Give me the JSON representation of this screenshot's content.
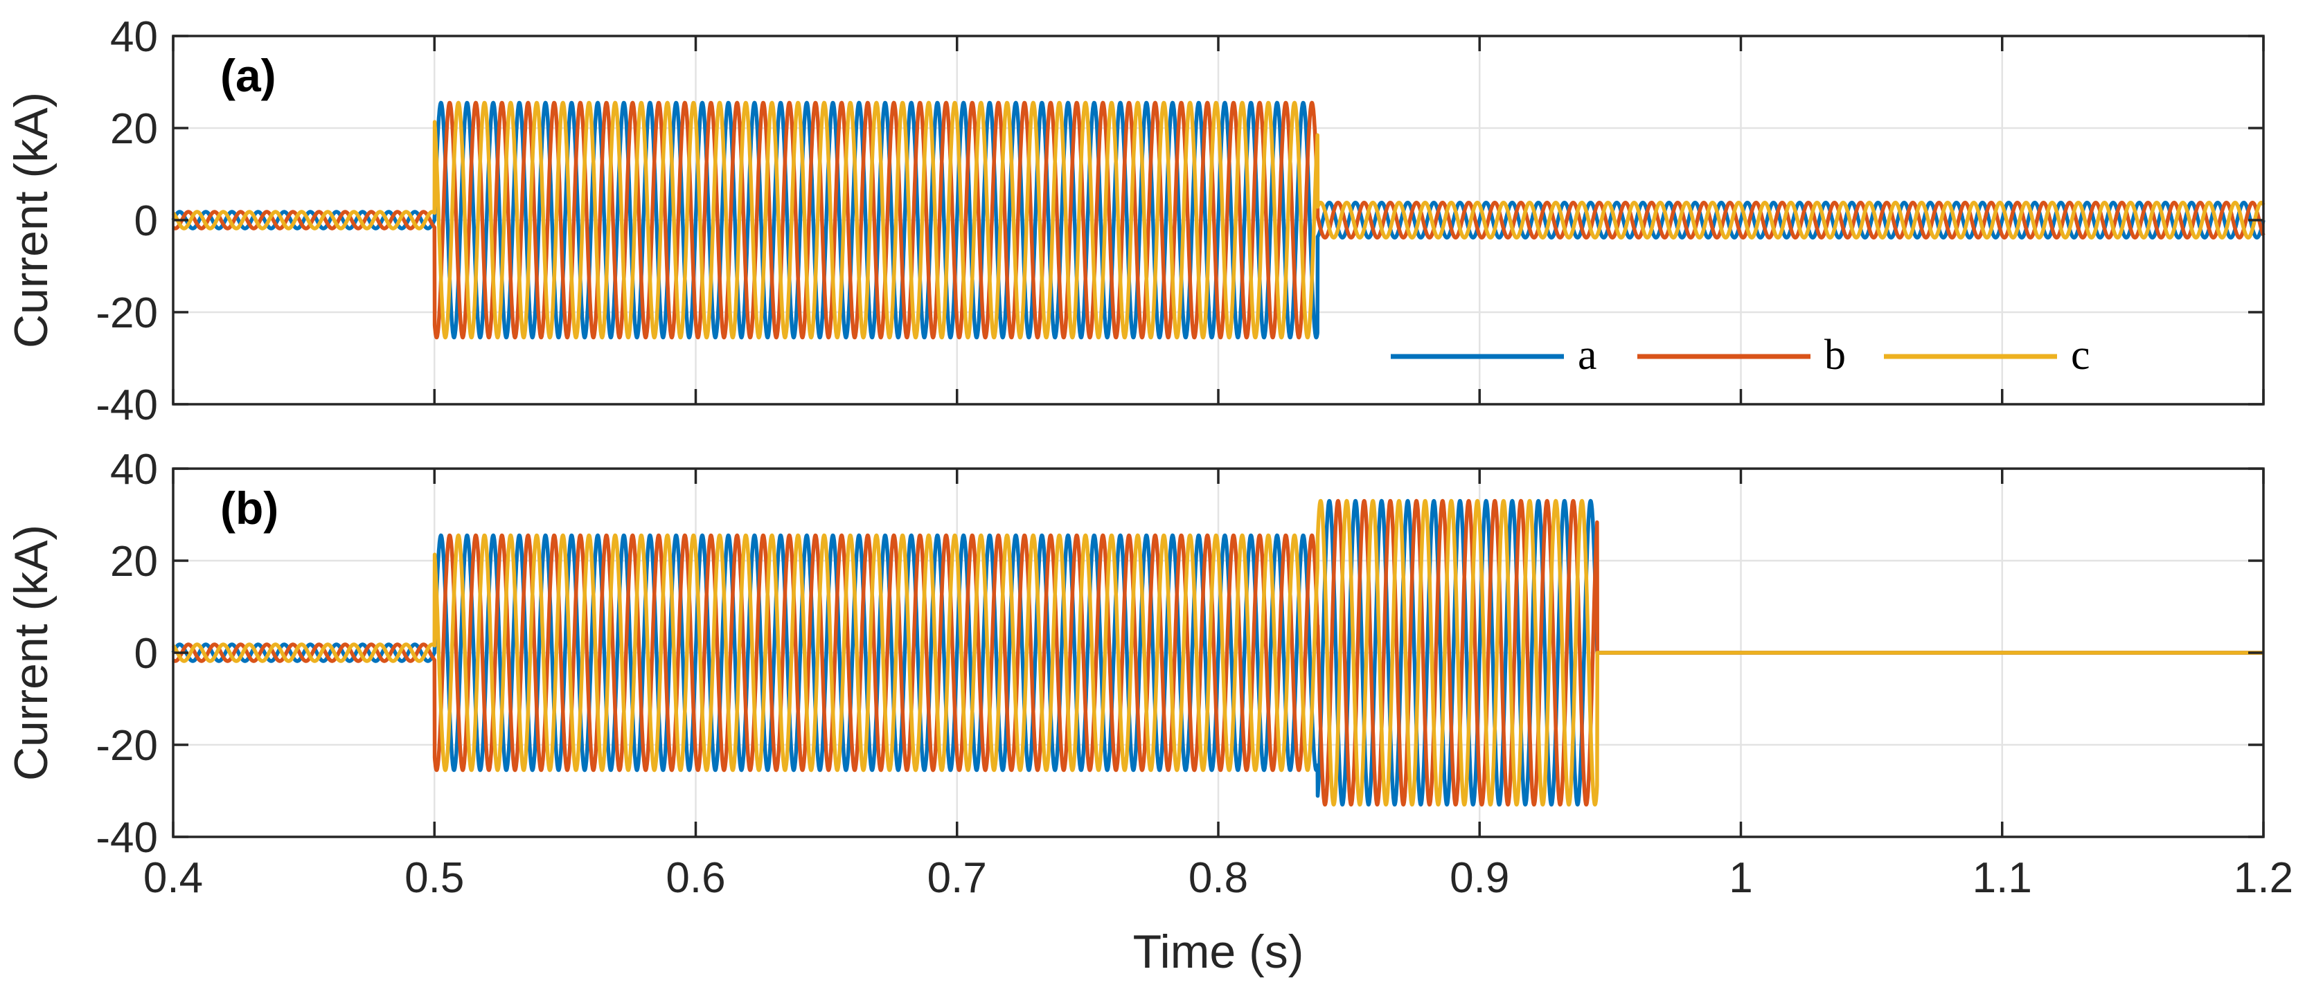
{
  "chart_data": [
    {
      "type": "line",
      "panel_label": "(a)",
      "xlabel": "",
      "ylabel": "Current (kA)",
      "xlim": [
        0.4,
        1.2
      ],
      "ylim": [
        -40,
        40
      ],
      "xticks": [
        0.4,
        0.5,
        0.6,
        0.7,
        0.8,
        0.9,
        1,
        1.1,
        1.2
      ],
      "yticks": [
        -40,
        -20,
        0,
        20,
        40
      ],
      "yticklabels": [
        "-40",
        "-20",
        "0",
        "20",
        "40"
      ],
      "grid": true,
      "legend_position": "bottom-right",
      "frequency_hz": 100,
      "phase_shifts_deg": [
        0,
        -120,
        120
      ],
      "series": [
        {
          "name": "a",
          "color": "#0072BD"
        },
        {
          "name": "b",
          "color": "#D95319"
        },
        {
          "name": "c",
          "color": "#EDB120"
        }
      ],
      "segments": [
        {
          "t_start": 0.4,
          "t_end": 0.5,
          "amplitude_kA": 1.8
        },
        {
          "t_start": 0.5,
          "t_end": 0.838,
          "amplitude_kA": 25.5
        },
        {
          "t_start": 0.838,
          "t_end": 1.2,
          "amplitude_kA": 3.8
        }
      ]
    },
    {
      "type": "line",
      "panel_label": "(b)",
      "xlabel": "Time (s)",
      "ylabel": "Current (kA)",
      "xlim": [
        0.4,
        1.2
      ],
      "ylim": [
        -40,
        40
      ],
      "xticks": [
        0.4,
        0.5,
        0.6,
        0.7,
        0.8,
        0.9,
        1,
        1.1,
        1.2
      ],
      "xticklabels": [
        "0.4",
        "0.5",
        "0.6",
        "0.7",
        "0.8",
        "0.9",
        "1",
        "1.1",
        "1.2"
      ],
      "yticks": [
        -40,
        -20,
        0,
        20,
        40
      ],
      "yticklabels": [
        "-40",
        "-20",
        "0",
        "20",
        "40"
      ],
      "grid": true,
      "frequency_hz": 100,
      "phase_shifts_deg": [
        0,
        -120,
        120
      ],
      "series": [
        {
          "name": "a",
          "color": "#0072BD"
        },
        {
          "name": "b",
          "color": "#D95319"
        },
        {
          "name": "c",
          "color": "#EDB120"
        }
      ],
      "segments": [
        {
          "t_start": 0.4,
          "t_end": 0.5,
          "amplitude_kA": 1.8
        },
        {
          "t_start": 0.5,
          "t_end": 0.838,
          "amplitude_kA": 25.5
        },
        {
          "t_start": 0.838,
          "t_end": 0.945,
          "amplitude_kA": 33
        },
        {
          "t_start": 0.945,
          "t_end": 1.2,
          "amplitude_kA": 0
        }
      ]
    }
  ]
}
